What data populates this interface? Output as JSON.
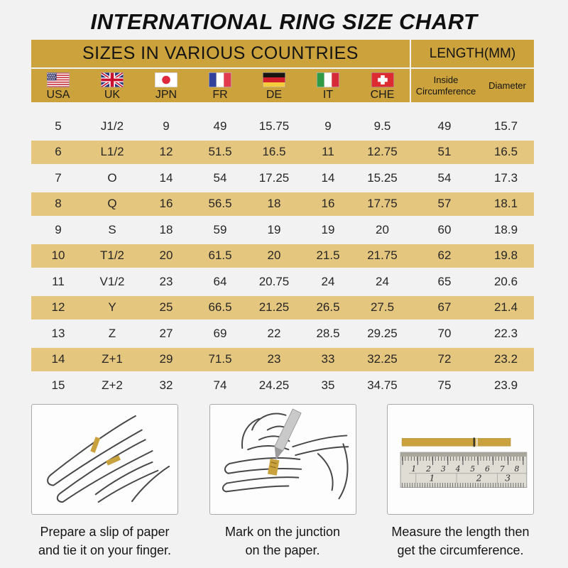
{
  "title": "INTERNATIONAL RING SIZE CHART",
  "table": {
    "header_left": "SIZES IN VARIOUS COUNTRIES",
    "header_right": "LENGTH(MM)",
    "countries": [
      "USA",
      "UK",
      "JPN",
      "FR",
      "DE",
      "IT",
      "CHE"
    ],
    "flag_icons": [
      "usa-flag",
      "uk-flag",
      "japan-flag",
      "france-flag",
      "germany-flag",
      "italy-flag",
      "switzerland-flag"
    ],
    "length_headers": [
      "Inside Circumference",
      "Diameter"
    ]
  },
  "steps": [
    {
      "lines": [
        "Prepare a slip of paper",
        "and tie it on your finger."
      ]
    },
    {
      "lines": [
        "Mark on the junction",
        "on the paper."
      ]
    },
    {
      "lines": [
        "Measure the length then",
        "get the circumference."
      ]
    }
  ],
  "ruler": {
    "cm_numbers": [
      "1",
      "2",
      "3",
      "4",
      "5",
      "6",
      "7",
      "8"
    ],
    "inch_numbers": [
      "1",
      "2",
      "3"
    ]
  },
  "colors": {
    "gold_header": "#CCA23C",
    "tan_row": "#E5C67E",
    "paper_gold": "#C9A23E",
    "background": "#F2F2F2"
  },
  "chart_data": {
    "type": "table",
    "title": "INTERNATIONAL RING SIZE CHART",
    "section_headers": [
      "SIZES IN VARIOUS COUNTRIES",
      "LENGTH(MM)"
    ],
    "columns": [
      "USA",
      "UK",
      "JPN",
      "FR",
      "DE",
      "IT",
      "CHE",
      "Inside Circumference",
      "Diameter"
    ],
    "length_unit": "mm",
    "rows": [
      [
        "5",
        "J1/2",
        "9",
        "49",
        "15.75",
        "9",
        "9.5",
        "49",
        "15.7"
      ],
      [
        "6",
        "L1/2",
        "12",
        "51.5",
        "16.5",
        "11",
        "12.75",
        "51",
        "16.5"
      ],
      [
        "7",
        "O",
        "14",
        "54",
        "17.25",
        "14",
        "15.25",
        "54",
        "17.3"
      ],
      [
        "8",
        "Q",
        "16",
        "56.5",
        "18",
        "16",
        "17.75",
        "57",
        "18.1"
      ],
      [
        "9",
        "S",
        "18",
        "59",
        "19",
        "19",
        "20",
        "60",
        "18.9"
      ],
      [
        "10",
        "T1/2",
        "20",
        "61.5",
        "20",
        "21.5",
        "21.75",
        "62",
        "19.8"
      ],
      [
        "11",
        "V1/2",
        "23",
        "64",
        "20.75",
        "24",
        "24",
        "65",
        "20.6"
      ],
      [
        "12",
        "Y",
        "25",
        "66.5",
        "21.25",
        "26.5",
        "27.5",
        "67",
        "21.4"
      ],
      [
        "13",
        "Z",
        "27",
        "69",
        "22",
        "28.5",
        "29.25",
        "70",
        "22.3"
      ],
      [
        "14",
        "Z+1",
        "29",
        "71.5",
        "23",
        "33",
        "32.25",
        "72",
        "23.2"
      ],
      [
        "15",
        "Z+2",
        "32",
        "74",
        "24.25",
        "35",
        "34.75",
        "75",
        "23.9"
      ]
    ]
  }
}
